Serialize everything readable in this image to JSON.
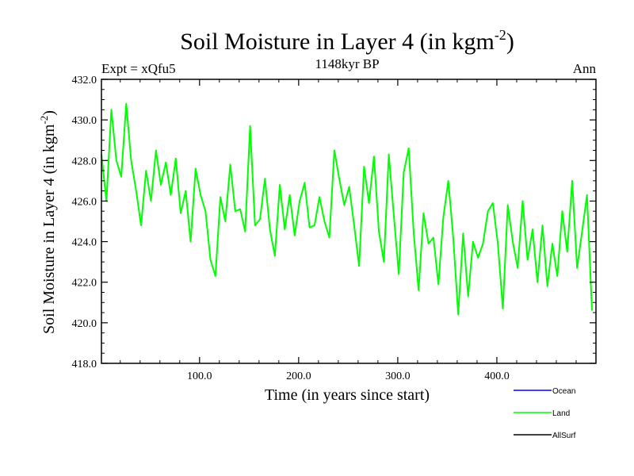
{
  "chart_data": {
    "type": "line",
    "title_main": "Soil Moisture in Layer 4 (in kgm",
    "title_sup": "-2",
    "title_close": ")",
    "subtitle": "1148kyr BP",
    "left_label": "Expt = xQfu5",
    "right_label": "Ann",
    "xlabel": "Time (in years since start)",
    "ylabel_main": "Soil Moisture in Layer 4 (in kgm",
    "ylabel_sup": "-2",
    "ylabel_close": ")",
    "xlim": [
      1,
      500
    ],
    "ylim": [
      418,
      432
    ],
    "x_ticks": [
      100,
      200,
      300,
      400
    ],
    "x_tick_labels": [
      "100.0",
      "200.0",
      "300.0",
      "400.0"
    ],
    "y_ticks": [
      418,
      420,
      422,
      424,
      426,
      428,
      430,
      432
    ],
    "y_tick_labels": [
      "418.0",
      "420.0",
      "422.0",
      "424.0",
      "426.0",
      "428.0",
      "430.0",
      "432.0"
    ],
    "series": [
      {
        "name": "Land",
        "color": "#00ff00",
        "x_start": 1,
        "x_step": 5,
        "values": [
          428.3,
          426.0,
          430.5,
          428.0,
          427.2,
          430.8,
          428.0,
          426.5,
          424.8,
          427.5,
          426.0,
          428.5,
          426.8,
          427.9,
          426.3,
          428.1,
          425.4,
          426.5,
          424.0,
          427.6,
          426.3,
          425.5,
          423.1,
          422.3,
          426.2,
          425.0,
          427.8,
          425.5,
          425.6,
          424.5,
          429.7,
          424.8,
          425.1,
          427.1,
          424.6,
          423.3,
          426.8,
          424.6,
          426.3,
          424.3,
          426.0,
          426.9,
          424.7,
          424.8,
          426.2,
          425.0,
          424.2,
          428.5,
          427.1,
          425.8,
          426.7,
          424.8,
          422.8,
          427.7,
          425.9,
          428.2,
          424.5,
          423.0,
          428.3,
          425.3,
          422.4,
          427.4,
          428.6,
          424.5,
          421.6,
          425.4,
          423.9,
          424.2,
          421.9,
          425.2,
          427.0,
          424.2,
          420.4,
          424.4,
          421.3,
          424.0,
          423.2,
          423.9,
          425.5,
          425.9,
          423.9,
          420.7,
          425.8,
          424.0,
          422.7,
          426.0,
          423.1,
          424.6,
          422.0,
          424.8,
          421.8,
          423.9,
          422.3,
          425.5,
          423.5,
          427.0,
          422.7,
          424.5,
          426.3,
          420.6
        ],
        "x_line": [
          1,
          6,
          11,
          16,
          21,
          26,
          31,
          36,
          41,
          46,
          51,
          56,
          61,
          66,
          71,
          76,
          81,
          86,
          91,
          96,
          101,
          106,
          111,
          116,
          121,
          126,
          131,
          136,
          141,
          146,
          151,
          156,
          161,
          166,
          171,
          176,
          181,
          186,
          191,
          196,
          201,
          206,
          211,
          216,
          221,
          226,
          231,
          236,
          241,
          246,
          251,
          256,
          261,
          266,
          271,
          276,
          281,
          286,
          291,
          296,
          301,
          306,
          311,
          316,
          321,
          326,
          331,
          336,
          341,
          346,
          351,
          356,
          361,
          366,
          371,
          376,
          381,
          386,
          391,
          396,
          401,
          406,
          411,
          416,
          421,
          426,
          431,
          436,
          441,
          446,
          451,
          456,
          461,
          466,
          471,
          476,
          481,
          486,
          491,
          496
        ]
      }
    ],
    "legend": [
      {
        "label": "Ocean",
        "color": "#0000ff"
      },
      {
        "label": "Land",
        "color": "#00ff00"
      },
      {
        "label": "AllSurf",
        "color": "#000000"
      }
    ],
    "legend_position": "bottom-right"
  }
}
